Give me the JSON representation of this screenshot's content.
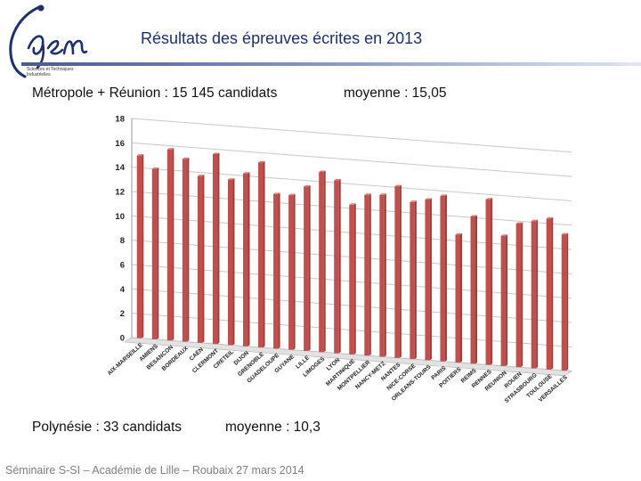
{
  "header": {
    "title": "Résultats des épreuves écrites en 2013",
    "logo_text": "Igen",
    "logo_subtitle": [
      "Sciences et Techniques",
      "Industrielles"
    ]
  },
  "stats": {
    "metropole_label": "Métropole + Réunion : 15 145 candidats",
    "metropole_mean": "moyenne : 15,05",
    "polynesie_label": "Polynésie : 33 candidats",
    "polynesie_mean": "moyenne : 10,3"
  },
  "footer": {
    "text": "Séminaire S-SI – Académie de Lille – Roubaix 27 mars 2014"
  },
  "colors": {
    "bar": "#c0504d",
    "bar_dark": "#a33a37",
    "title": "#1f2f6b",
    "grid": "#c8c8c8"
  },
  "chart_data": {
    "type": "bar",
    "ylim": [
      0,
      18
    ],
    "yticks": [
      0,
      2,
      4,
      6,
      8,
      10,
      12,
      14,
      16,
      18
    ],
    "grid": true,
    "categories": [
      "AIX-MARSEILLE",
      "AMIENS",
      "BESANCON",
      "BORDEAUX",
      "CAEN",
      "CLERMONT",
      "CRETEIL",
      "DIJON",
      "GRENOBLE",
      "GUADELOUPE",
      "GUYANE",
      "LILLE",
      "LIMOGES",
      "LYON",
      "MARTINIQUE",
      "MONTPELLIER",
      "NANCY-METZ",
      "NANTES",
      "NICE-CORSE",
      "ORLEANS-TOURS",
      "PARIS",
      "POITIERS",
      "REIMS",
      "RENNES",
      "REUNION",
      "ROUEN",
      "STRASBOURG",
      "TOULOUSE",
      "VERSAILLES"
    ],
    "values": [
      15.0,
      14.0,
      15.7,
      15.0,
      13.7,
      15.6,
      13.6,
      14.2,
      15.2,
      12.7,
      12.7,
      13.5,
      14.8,
      14.2,
      12.3,
      13.2,
      13.3,
      14.1,
      12.9,
      13.2,
      13.6,
      10.5,
      12.1,
      13.6,
      10.7,
      11.8,
      12.1,
      12.4,
      11.2
    ]
  }
}
